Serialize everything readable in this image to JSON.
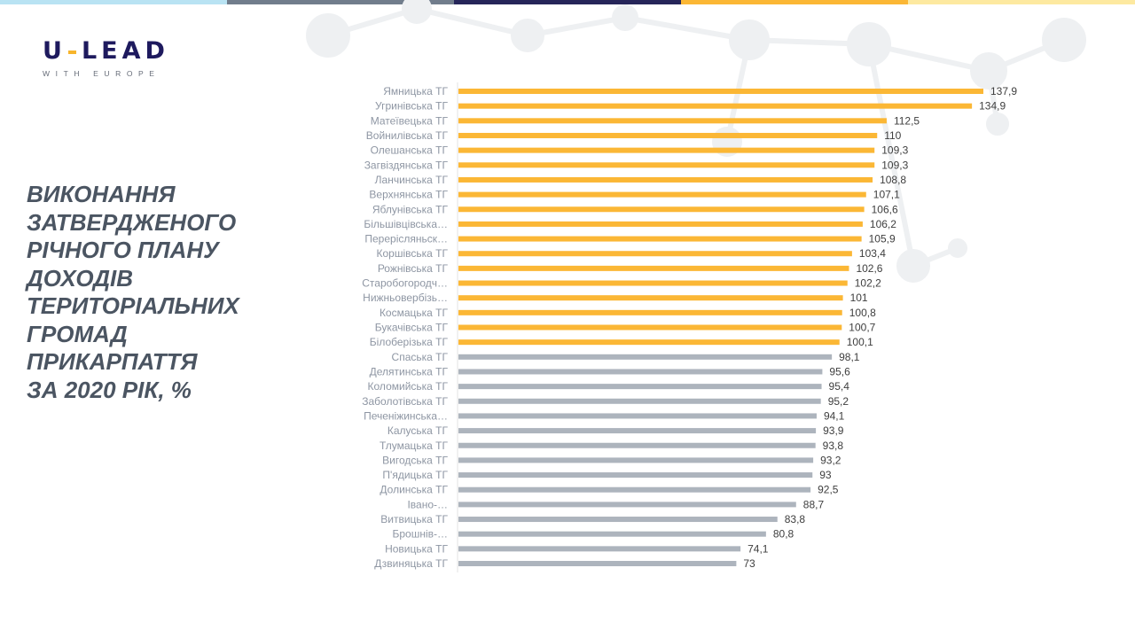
{
  "header": {
    "stripe_colors": [
      "#b9e3f3",
      "#717d8c",
      "#262559",
      "#fbb735",
      "#fde9a0"
    ]
  },
  "logo": {
    "main_left": "U",
    "main_right": "LEAD",
    "subtitle": "WITH EUROPE"
  },
  "title": {
    "lines": [
      "ВИКОНАННЯ",
      "ЗАТВЕРДЖЕНОГО",
      "РІЧНОГО ПЛАНУ",
      "ДОХОДІВ",
      "ТЕРИТОРІАЛЬНИХ",
      "ГРОМАД",
      "ПРИКАРПАТТЯ",
      "ЗА 2020 РІК, %"
    ]
  },
  "chart_data": {
    "type": "bar",
    "orientation": "horizontal",
    "title": "ВИКОНАННЯ ЗАТВЕРДЖЕНОГО РІЧНОГО ПЛАНУ ДОХОДІВ ТЕРИТОРІАЛЬНИХ ГРОМАД ПРИКАРПАТТЯ ЗА 2020 РІК, %",
    "categories": [
      "Ямницька ТГ",
      "Угринівська ТГ",
      "Матеївецька ТГ",
      "Войнилівська ТГ",
      "Олешанська ТГ",
      "Загвіздянська ТГ",
      "Ланчинська ТГ",
      "Верхнянська ТГ",
      "Яблунівська ТГ",
      "Більшівцівська…",
      "Перерісляньск…",
      "Коршівська ТГ",
      "Рожнівська ТГ",
      "Старобогородч…",
      "Нижньовербізь…",
      "Космацька ТГ",
      "Букачівська ТГ",
      "Білоберізька ТГ",
      "Спаська ТГ",
      "Делятинська ТГ",
      "Коломийська ТГ",
      "Заболотівська ТГ",
      "Печеніжинська…",
      "Калуська ТГ",
      "Тлумацька ТГ",
      "Вигодська ТГ",
      "П'ядицька ТГ",
      "Долинська ТГ",
      "Івано-…",
      "Витвицька ТГ",
      "Брошнів-…",
      "Новицька ТГ",
      "Дзвиняцька ТГ"
    ],
    "values": [
      137.9,
      134.9,
      112.5,
      110,
      109.3,
      109.3,
      108.8,
      107.1,
      106.6,
      106.2,
      105.9,
      103.4,
      102.6,
      102.2,
      101,
      100.8,
      100.7,
      100.1,
      98.1,
      95.6,
      95.4,
      95.2,
      94.1,
      93.9,
      93.8,
      93.2,
      93,
      92.5,
      88.7,
      83.8,
      80.8,
      74.1,
      73
    ],
    "value_labels": [
      "137,9",
      "134,9",
      "112,5",
      "110",
      "109,3",
      "109,3",
      "108,8",
      "107,1",
      "106,6",
      "106,2",
      "105,9",
      "103,4",
      "102,6",
      "102,2",
      "101",
      "100,8",
      "100,7",
      "100,1",
      "98,1",
      "95,6",
      "95,4",
      "95,2",
      "94,1",
      "93,9",
      "93,8",
      "93,2",
      "93",
      "92,5",
      "88,7",
      "83,8",
      "80,8",
      "74,1",
      "73"
    ],
    "threshold": 100,
    "colors": {
      "above": "#fbb735",
      "below": "#adb4bd"
    },
    "xlim": [
      0,
      140
    ]
  }
}
